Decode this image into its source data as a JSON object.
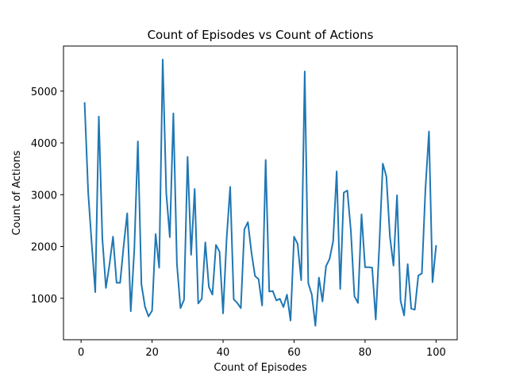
{
  "chart_data": {
    "type": "line",
    "title": "Count of Episodes vs Count of Actions",
    "xlabel": "Count of Episodes",
    "ylabel": "Count of Actions",
    "xlim": [
      -4.95,
      105.95
    ],
    "ylim": [
      200,
      5870
    ],
    "xticks": [
      0,
      20,
      40,
      60,
      80,
      100
    ],
    "yticks": [
      1000,
      2000,
      3000,
      4000,
      5000
    ],
    "grid": false,
    "legend": "none",
    "line_color": "#1f77b4",
    "series": [
      {
        "x": [
          1,
          2,
          3,
          4,
          5,
          6,
          7,
          8,
          9,
          10,
          11,
          12,
          13,
          14,
          15,
          16,
          17,
          18,
          19,
          20,
          21,
          22,
          23,
          24,
          25,
          26,
          27,
          28,
          29,
          30,
          31,
          32,
          33,
          34,
          35,
          36,
          37,
          38,
          39,
          40,
          41,
          42,
          43,
          44,
          45,
          46,
          47,
          48,
          49,
          50,
          51,
          52,
          53,
          54,
          55,
          56,
          57,
          58,
          59,
          60,
          61,
          62,
          63,
          64,
          65,
          66,
          67,
          68,
          69,
          70,
          71,
          72,
          73,
          74,
          75,
          76,
          77,
          78,
          79,
          80,
          81,
          82,
          83,
          84,
          85,
          86,
          87,
          88,
          89,
          90,
          91,
          92,
          93,
          94,
          95,
          96,
          97,
          98,
          99,
          100
        ],
        "values": [
          4770,
          3050,
          2050,
          1120,
          4510,
          2150,
          1200,
          1650,
          2190,
          1300,
          1300,
          2020,
          2640,
          750,
          1950,
          4030,
          1270,
          840,
          650,
          760,
          2240,
          1590,
          5610,
          3030,
          2180,
          4570,
          1660,
          810,
          970,
          3730,
          1840,
          3110,
          900,
          990,
          2080,
          1220,
          1070,
          2030,
          1900,
          710,
          2150,
          3150,
          980,
          910,
          810,
          2330,
          2470,
          1880,
          1430,
          1370,
          860,
          3670,
          1130,
          1140,
          960,
          990,
          830,
          1070,
          570,
          2190,
          2050,
          1350,
          5380,
          1290,
          1070,
          470,
          1400,
          940,
          1620,
          1760,
          2100,
          3450,
          1180,
          3040,
          3080,
          2300,
          1040,
          910,
          2620,
          1600,
          1600,
          1590,
          590,
          2000,
          3600,
          3350,
          2190,
          1630,
          2990,
          950,
          670,
          1660,
          800,
          780,
          1440,
          1480,
          3110,
          4220,
          1310,
          2010
        ]
      }
    ]
  }
}
